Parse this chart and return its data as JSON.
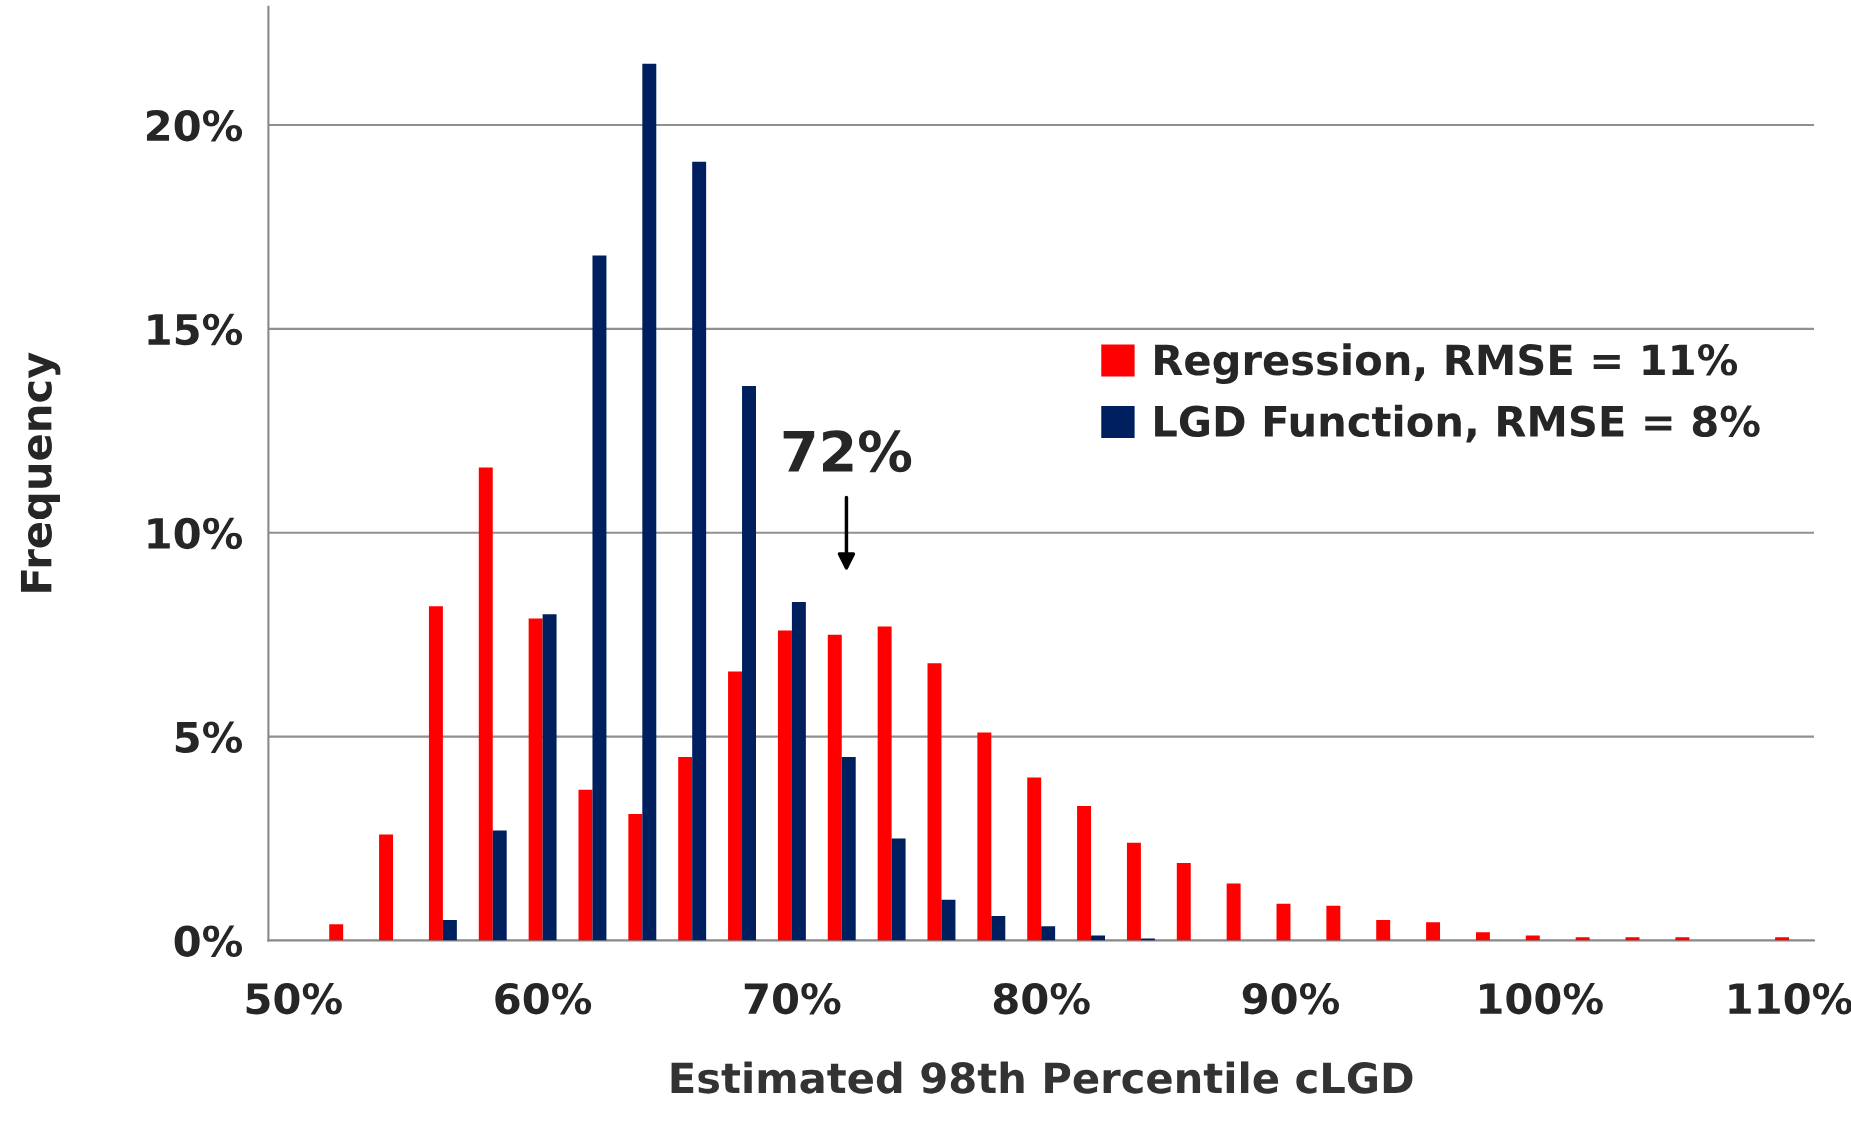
{
  "chart_data": {
    "type": "bar",
    "xlabel": "Estimated 98th Percentile cLGD",
    "ylabel": "Frequency",
    "categories": [
      "50%",
      null,
      null,
      null,
      null,
      "60%",
      null,
      null,
      null,
      null,
      "70%",
      null,
      null,
      null,
      null,
      "80%",
      null,
      null,
      null,
      null,
      "90%",
      null,
      null,
      null,
      null,
      "100%",
      null,
      null,
      null,
      null,
      "110%"
    ],
    "series": [
      {
        "name": "Regression, RMSE = 11%",
        "color": "#ff0000",
        "values": [
          0,
          0.4,
          2.6,
          8.2,
          11.6,
          7.9,
          3.7,
          3.1,
          4.5,
          6.6,
          7.6,
          7.5,
          7.7,
          6.8,
          5.1,
          4.0,
          3.3,
          2.4,
          1.9,
          1.4,
          0.9,
          0.85,
          0.5,
          0.45,
          0.2,
          0.12,
          0.08,
          0.08,
          0.08,
          0,
          0.08
        ]
      },
      {
        "name": "LGD Function, RMSE = 8%",
        "color": "#001f5f",
        "values": [
          0,
          0,
          0,
          0.5,
          2.7,
          8.0,
          16.8,
          21.5,
          19.1,
          13.6,
          8.3,
          4.5,
          2.5,
          1.0,
          0.6,
          0.35,
          0.12,
          0.05,
          0,
          0,
          0,
          0,
          0,
          0,
          0,
          0,
          0,
          0,
          0,
          0,
          0
        ]
      }
    ],
    "ylim": [
      0,
      22.9
    ],
    "yticks": [
      {
        "value": 0,
        "label": "0%"
      },
      {
        "value": 5,
        "label": "5%"
      },
      {
        "value": 10,
        "label": "10%"
      },
      {
        "value": 15,
        "label": "15%"
      },
      {
        "value": 20,
        "label": "20%"
      }
    ],
    "annotations": [
      "72%"
    ],
    "grid": "y",
    "legend": "right"
  }
}
